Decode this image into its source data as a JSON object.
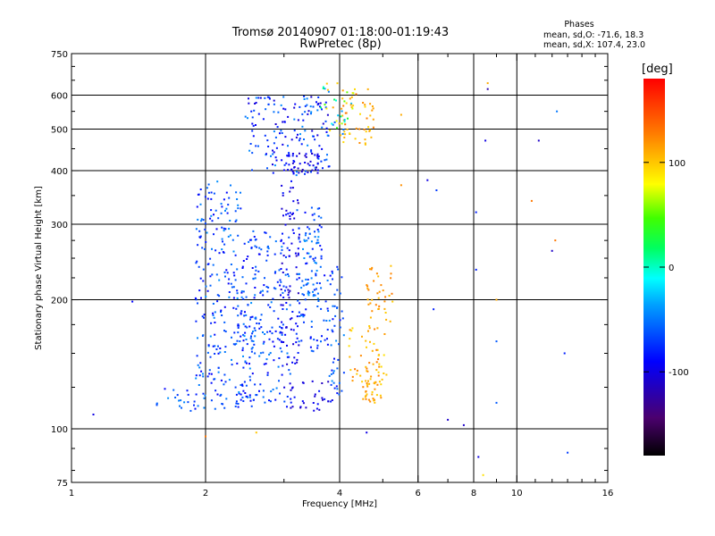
{
  "title": {
    "line1": "Tromsø 20140907 01:18:00-01:19:43",
    "line2": "RwPretec (8p)"
  },
  "stats": {
    "heading": "Phases",
    "line_o": "mean, sd,O: -71.6, 18.3",
    "line_x": "mean, sd,X: 107.4, 23.0"
  },
  "colorbar": {
    "unit": "[deg]",
    "ticks": [
      {
        "value": 100,
        "label": "100"
      },
      {
        "value": 0,
        "label": "0"
      },
      {
        "value": -100,
        "label": "-100"
      }
    ],
    "range": [
      -180,
      180
    ]
  },
  "chart_data": {
    "type": "scatter",
    "xlabel": "Frequency [MHz]",
    "ylabel": "Stationary phase Virtual Height [km]",
    "xscale": "log",
    "yscale": "log",
    "xlim": [
      1,
      16
    ],
    "ylim": [
      75,
      750
    ],
    "xticks": [
      {
        "value": 1,
        "label": "1"
      },
      {
        "value": 2,
        "label": "2"
      },
      {
        "value": 4,
        "label": "4"
      },
      {
        "value": 6,
        "label": "6"
      },
      {
        "value": 8,
        "label": "8"
      },
      {
        "value": 10,
        "label": "10"
      },
      {
        "value": 16,
        "label": "16"
      }
    ],
    "yticks": [
      {
        "value": 75,
        "label": "75"
      },
      {
        "value": 100,
        "label": "100"
      },
      {
        "value": 200,
        "label": "200"
      },
      {
        "value": 300,
        "label": "300"
      },
      {
        "value": 400,
        "label": "400"
      },
      {
        "value": 500,
        "label": "500"
      },
      {
        "value": 600,
        "label": "600"
      },
      {
        "value": 750,
        "label": "750"
      }
    ],
    "x_gridlines": [
      2,
      4,
      6,
      8,
      10
    ],
    "y_gridlines": [
      100,
      200,
      300,
      400,
      500,
      600
    ],
    "color_by": "phase [deg]",
    "clusters": [
      {
        "freq": [
          1.55,
          2.6
        ],
        "height": [
          110,
          125
        ],
        "phase": [
          -95,
          -40
        ]
      },
      {
        "freq": [
          1.9,
          2.6
        ],
        "height": [
          125,
          200
        ],
        "phase": [
          -95,
          -40
        ]
      },
      {
        "freq": [
          1.9,
          2.4
        ],
        "height": [
          200,
          380
        ],
        "phase": [
          -95,
          -40
        ]
      },
      {
        "freq": [
          2.4,
          3.1
        ],
        "height": [
          115,
          290
        ],
        "phase": [
          -95,
          -45
        ]
      },
      {
        "freq": [
          3.0,
          3.9
        ],
        "height": [
          110,
          130
        ],
        "phase": [
          -115,
          -80
        ]
      },
      {
        "freq": [
          2.95,
          3.25
        ],
        "height": [
          140,
          430
        ],
        "phase": [
          -115,
          -80
        ]
      },
      {
        "freq": [
          3.2,
          3.7
        ],
        "height": [
          150,
          330
        ],
        "phase": [
          -90,
          -45
        ]
      },
      {
        "freq": [
          3.3,
          3.6
        ],
        "height": [
          200,
          290
        ],
        "phase": [
          -70,
          -35
        ]
      },
      {
        "freq": [
          2.45,
          3.8
        ],
        "height": [
          390,
          600
        ],
        "phase": [
          -110,
          -40
        ]
      },
      {
        "freq": [
          3.0,
          3.6
        ],
        "height": [
          390,
          440
        ],
        "phase": [
          -115,
          -85
        ]
      },
      {
        "freq": [
          3.7,
          4.1
        ],
        "height": [
          120,
          240
        ],
        "phase": [
          -90,
          -40
        ]
      },
      {
        "freq": [
          4.2,
          5.1
        ],
        "height": [
          125,
          175
        ],
        "phase": [
          90,
          130
        ]
      },
      {
        "freq": [
          4.5,
          5.0
        ],
        "height": [
          115,
          130
        ],
        "phase": [
          95,
          125
        ]
      },
      {
        "freq": [
          4.6,
          5.3
        ],
        "height": [
          175,
          240
        ],
        "phase": [
          95,
          130
        ]
      },
      {
        "freq": [
          4.0,
          4.8
        ],
        "height": [
          460,
          620
        ],
        "phase": [
          90,
          130
        ]
      },
      {
        "freq": [
          3.6,
          4.3
        ],
        "height": [
          480,
          640
        ],
        "phase": [
          -60,
          120
        ]
      }
    ],
    "isolated_points": [
      [
        1.12,
        108,
        -100
      ],
      [
        1.37,
        198,
        -90
      ],
      [
        2.0,
        96,
        130
      ],
      [
        2.2,
        290,
        -40
      ],
      [
        2.6,
        98,
        100
      ],
      [
        4.6,
        98,
        -100
      ],
      [
        5.5,
        540,
        110
      ],
      [
        5.5,
        370,
        120
      ],
      [
        6.3,
        380,
        -100
      ],
      [
        6.6,
        360,
        -70
      ],
      [
        6.5,
        190,
        -80
      ],
      [
        7.0,
        105,
        -110
      ],
      [
        7.6,
        102,
        -110
      ],
      [
        8.1,
        320,
        -80
      ],
      [
        8.1,
        235,
        -80
      ],
      [
        8.2,
        86,
        -100
      ],
      [
        8.5,
        470,
        -100
      ],
      [
        8.6,
        640,
        110
      ],
      [
        8.6,
        620,
        -120
      ],
      [
        9.0,
        200,
        110
      ],
      [
        9.0,
        115,
        -60
      ],
      [
        9.0,
        160,
        -60
      ],
      [
        10.8,
        340,
        130
      ],
      [
        11.2,
        470,
        -110
      ],
      [
        12.0,
        260,
        -110
      ],
      [
        12.2,
        275,
        130
      ],
      [
        12.3,
        550,
        -50
      ],
      [
        12.8,
        150,
        -80
      ],
      [
        13.0,
        88,
        -70
      ],
      [
        8.4,
        78,
        90
      ]
    ]
  }
}
